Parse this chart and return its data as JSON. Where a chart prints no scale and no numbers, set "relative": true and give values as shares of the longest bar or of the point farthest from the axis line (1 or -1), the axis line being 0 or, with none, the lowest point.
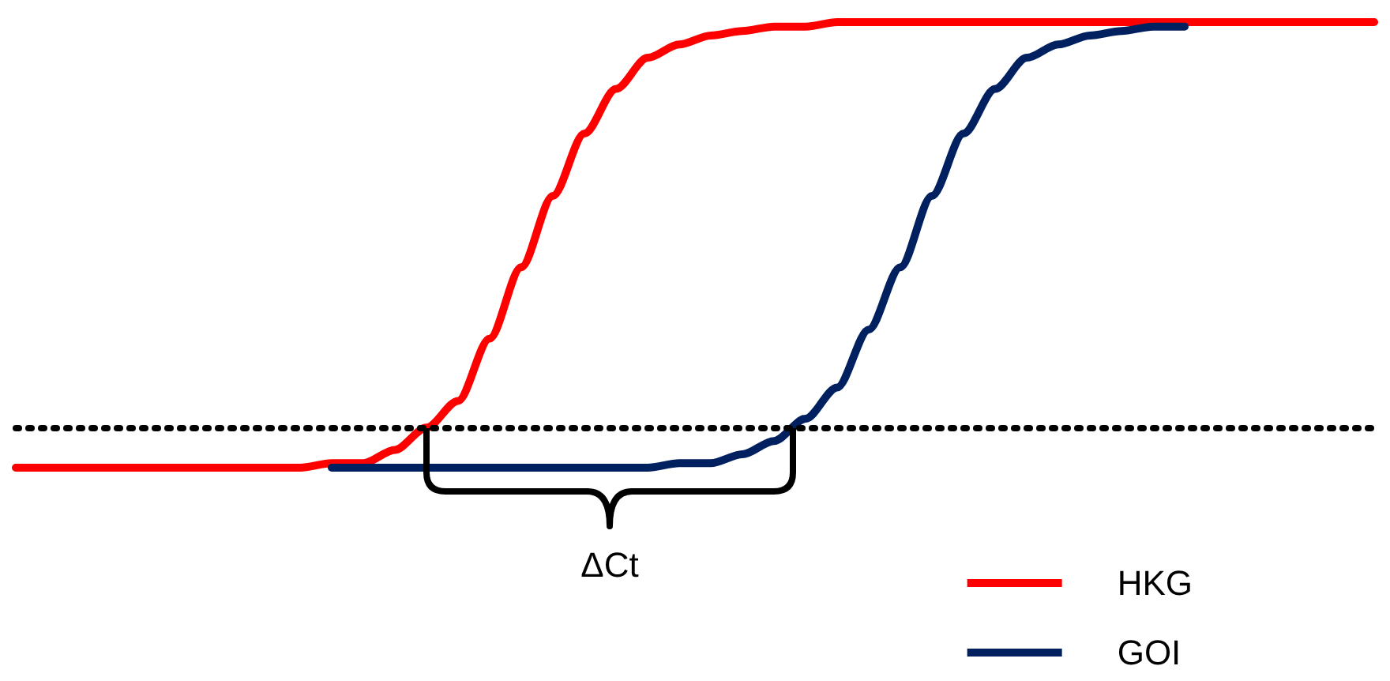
{
  "chart_data": {
    "type": "line",
    "relative": true,
    "categories": [
      null,
      null,
      null,
      null,
      null,
      null,
      null,
      null,
      null,
      null,
      null,
      null,
      null,
      null,
      null,
      null,
      null,
      null,
      null,
      null,
      null,
      null,
      null,
      null,
      null,
      null,
      null,
      null,
      null,
      null,
      null,
      null,
      null,
      null,
      null,
      null,
      null,
      null,
      null,
      null,
      null,
      null,
      null,
      null
    ],
    "series": [
      {
        "name": "HKG",
        "color": "#ff0000",
        "values": [
          0,
          0,
          0,
          0,
          0,
          0,
          0,
          0,
          0,
          0,
          0.01,
          0.01,
          0.04,
          0.09,
          0.15,
          0.29,
          0.45,
          0.61,
          0.75,
          0.85,
          0.92,
          0.95,
          0.97,
          0.98,
          0.99,
          0.99,
          1,
          1,
          1,
          1,
          1,
          1,
          1,
          1,
          1,
          1,
          1,
          1,
          1,
          1,
          1,
          1,
          1,
          1
        ]
      },
      {
        "name": "GOI",
        "color": "#002060",
        "values": [
          null,
          null,
          null,
          null,
          null,
          null,
          null,
          null,
          null,
          null,
          0,
          0,
          0,
          0,
          0,
          0,
          0,
          0,
          0,
          0,
          0,
          0.01,
          0.01,
          0.03,
          0.06,
          0.11,
          0.18,
          0.31,
          0.45,
          0.61,
          0.75,
          0.85,
          0.92,
          0.95,
          0.97,
          0.98,
          0.99,
          0.99,
          null,
          null,
          null,
          null,
          null,
          null
        ]
      }
    ],
    "ref_lines": [
      {
        "axis": "y",
        "value": 0.09,
        "color": "#000000",
        "line_style": "dotted"
      }
    ],
    "annotations": [
      "ΔCt"
    ],
    "legend": "bottom right",
    "marker": "none",
    "line_style": "solid",
    "grid": false
  }
}
